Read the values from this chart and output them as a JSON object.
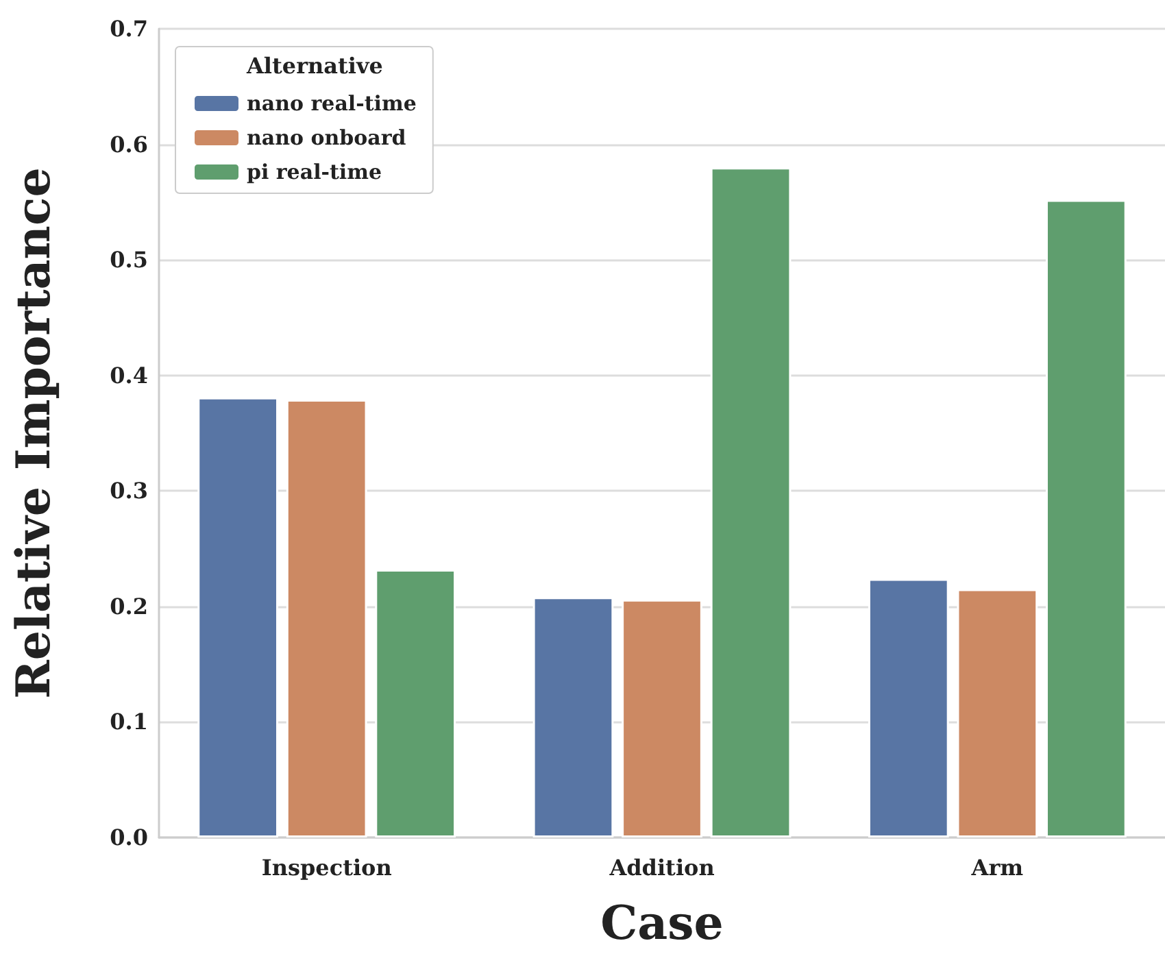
{
  "chart_data": {
    "type": "bar",
    "xlabel": "Case",
    "ylabel": "Relative Importance",
    "legend_title": "Alternative",
    "categories": [
      "Inspection",
      "Addition",
      "Arm"
    ],
    "series": [
      {
        "name": "nano real-time",
        "color": "#5875a4",
        "values": [
          0.381,
          0.208,
          0.224
        ]
      },
      {
        "name": "nano onboard",
        "color": "#cc8963",
        "values": [
          0.379,
          0.206,
          0.215
        ]
      },
      {
        "name": "pi real-time",
        "color": "#5f9e6e",
        "values": [
          0.232,
          0.58,
          0.552
        ]
      }
    ],
    "ylim": [
      0,
      0.7
    ],
    "yticks": [
      {
        "value": 0,
        "label": "0.0"
      },
      0.1,
      0.2,
      0.3,
      0.4,
      0.5,
      0.6,
      0.7
    ],
    "grid": "y",
    "legend": "top left"
  }
}
